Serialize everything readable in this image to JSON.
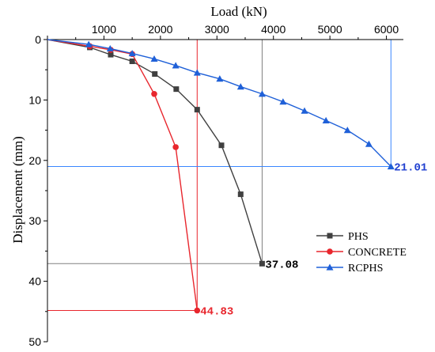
{
  "chart_data": {
    "type": "line",
    "xlabel": "Load (kN)",
    "ylabel": "Displacement (mm)",
    "xlim": [
      0,
      6300
    ],
    "ylim": [
      0,
      50
    ],
    "y_inverted": true,
    "x_axis_position": "top",
    "x_ticks": [
      "1000",
      "2000",
      "3000",
      "4000",
      "5000",
      "6000"
    ],
    "y_ticks": [
      "0",
      "10",
      "20",
      "30",
      "40",
      "50"
    ],
    "legend_position": "bottom-right",
    "series": [
      {
        "name": "PHS",
        "color": "#404040",
        "marker": "square",
        "x": [
          0,
          750,
          1120,
          1500,
          1900,
          2280,
          2650,
          3080,
          3420,
          3800
        ],
        "y": [
          0,
          1.3,
          2.5,
          3.6,
          5.7,
          8.2,
          11.6,
          17.5,
          25.6,
          37.08
        ]
      },
      {
        "name": "CONCRETE",
        "color": "#e8262d",
        "marker": "circle",
        "x": [
          0,
          750,
          1120,
          1500,
          1890,
          2270,
          2650
        ],
        "y": [
          0,
          1.1,
          1.7,
          2.4,
          9.0,
          17.8,
          44.83
        ]
      },
      {
        "name": "RCPHS",
        "color": "#1f60d8",
        "marker": "triangle",
        "x": [
          0,
          730,
          1110,
          1500,
          1890,
          2270,
          2650,
          3050,
          3420,
          3800,
          4170,
          4550,
          4930,
          5310,
          5690,
          6080
        ],
        "y": [
          0,
          0.8,
          1.5,
          2.3,
          3.2,
          4.3,
          5.5,
          6.5,
          7.8,
          9.0,
          10.3,
          11.8,
          13.4,
          15.0,
          17.3,
          21.01
        ]
      }
    ],
    "annotations": [
      {
        "text": "37.08",
        "color": "#000000",
        "x": 3800,
        "y": 37.08
      },
      {
        "text": "44.83",
        "color": "#e8262d",
        "x": 2650,
        "y": 44.83
      },
      {
        "text": "21.01",
        "color": "#1f3fd0",
        "x": 6080,
        "y": 21.01
      }
    ],
    "reference_lines": [
      {
        "color": "#808080",
        "x": 3800,
        "y": 37.08
      },
      {
        "color": "#e8262d",
        "x": 2650,
        "y": 44.83
      },
      {
        "color": "#3a86ff",
        "x": 6080,
        "y": 21.01
      }
    ]
  }
}
